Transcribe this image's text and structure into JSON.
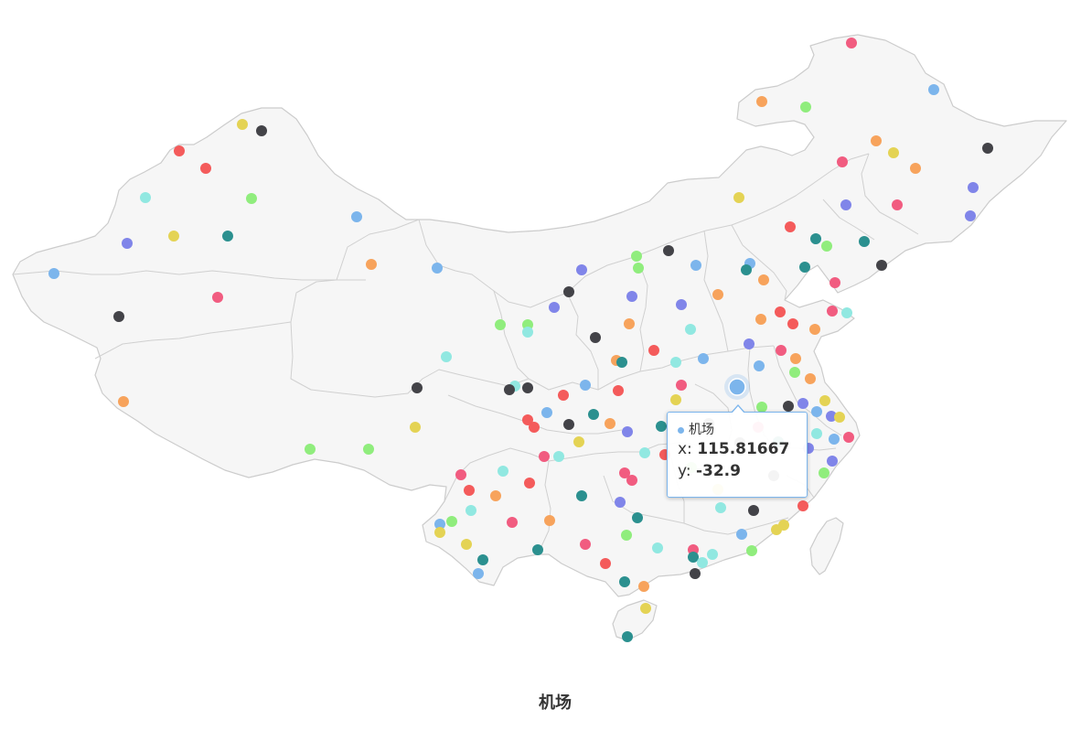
{
  "title": "机场",
  "tooltip": {
    "series_name": "机场",
    "x_label": "x: ",
    "x_value": "115.81667",
    "y_label": "y: ",
    "y_value": "-32.9",
    "dot_color": "#7cb5ec"
  },
  "highlighted_point": {
    "lon": 115.81667,
    "lat": 32.9
  },
  "marker_palette": [
    "#7cb5ec",
    "#434348",
    "#90ed7d",
    "#f7a35c",
    "#8085e9",
    "#f15c80",
    "#e4d354",
    "#2b908f",
    "#f45b5b",
    "#91e8e1"
  ]
}
